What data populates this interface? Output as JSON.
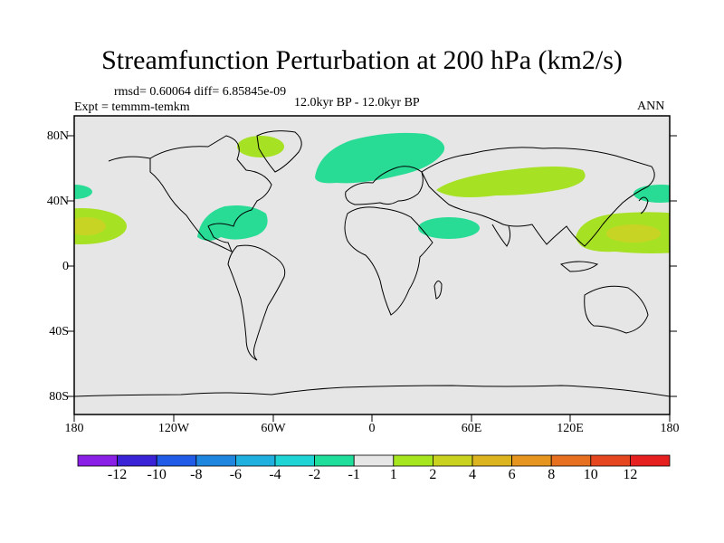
{
  "title": "Streamfunction Perturbation at 200 hPa (km2/s)",
  "stats": "rmsd= 0.60064 diff= 6.85845e-09",
  "experiment": "Expt = temmm-temkm",
  "period": "12.0kyr BP - 12.0kyr BP",
  "season": "ANN",
  "lat_labels": [
    "80N",
    "40N",
    "0",
    "40S",
    "80S"
  ],
  "lon_labels": [
    "180",
    "120W",
    "60W",
    "0",
    "60E",
    "120E",
    "180"
  ],
  "colorbar": {
    "labels": [
      "-12",
      "-10",
      "-8",
      "-6",
      "-4",
      "-2",
      "-1",
      "1",
      "2",
      "4",
      "6",
      "8",
      "10",
      "12"
    ],
    "colors": [
      "#8a1fe6",
      "#3a22d6",
      "#1f5be6",
      "#1f86e0",
      "#1fb0e0",
      "#1fd4d4",
      "#1fdd9a",
      "#e6e6e6",
      "#a6e61f",
      "#c8d21f",
      "#dcb41f",
      "#e6961f",
      "#e6701f",
      "#e6461f",
      "#e61f1f"
    ]
  },
  "colors": {
    "ocean": "#e6e6e6",
    "green": "#28dc96",
    "lime": "#a6e123",
    "olive": "#c8d423"
  }
}
